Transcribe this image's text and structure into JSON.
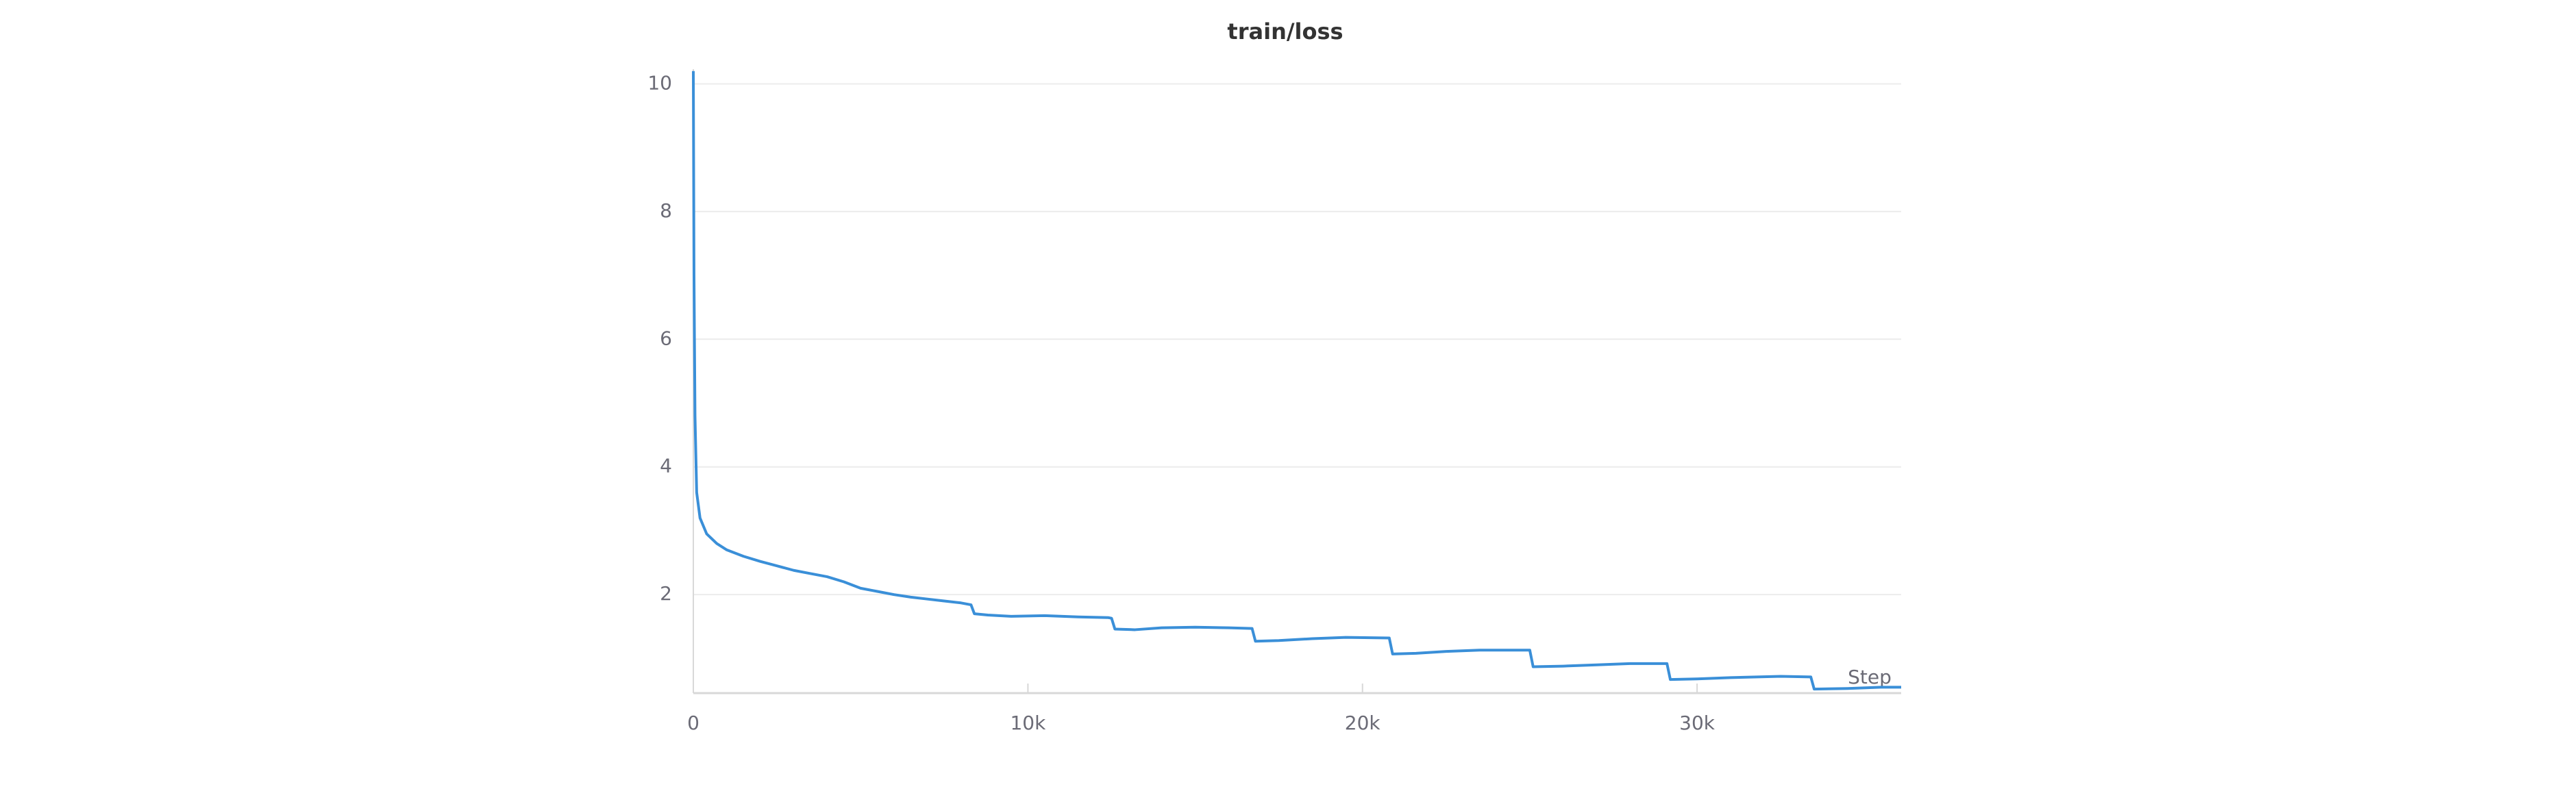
{
  "chart_data": {
    "type": "line",
    "title": "train/loss",
    "xlabel": "Step",
    "x": [
      0,
      20,
      50,
      100,
      200,
      400,
      700,
      1000,
      1500,
      2000,
      2500,
      3000,
      3500,
      4000,
      4500,
      5000,
      5500,
      6000,
      6500,
      7000,
      7500,
      8000,
      8300,
      8400,
      8800,
      9500,
      10500,
      11500,
      12400,
      12500,
      12600,
      13200,
      14000,
      15000,
      16000,
      16700,
      16800,
      17500,
      18500,
      19500,
      20800,
      20900,
      21600,
      22500,
      23500,
      25000,
      25100,
      26000,
      27000,
      28000,
      29100,
      29200,
      30000,
      31000,
      32500,
      33400,
      33500,
      34500,
      35500,
      36100
    ],
    "series": [
      {
        "color": "#3a8fd8",
        "values": [
          10.2,
          7.0,
          4.8,
          3.6,
          3.2,
          2.95,
          2.8,
          2.7,
          2.6,
          2.52,
          2.45,
          2.38,
          2.33,
          2.28,
          2.2,
          2.1,
          2.05,
          2.0,
          1.96,
          1.93,
          1.9,
          1.87,
          1.84,
          1.7,
          1.68,
          1.66,
          1.67,
          1.65,
          1.64,
          1.63,
          1.46,
          1.45,
          1.48,
          1.49,
          1.48,
          1.47,
          1.27,
          1.28,
          1.31,
          1.33,
          1.32,
          1.07,
          1.08,
          1.11,
          1.13,
          1.13,
          0.87,
          0.88,
          0.9,
          0.92,
          0.92,
          0.67,
          0.68,
          0.7,
          0.72,
          0.71,
          0.52,
          0.53,
          0.55,
          0.55
        ]
      }
    ],
    "xlim": [
      0,
      36100
    ],
    "ylim": [
      0.457,
      10.23
    ],
    "xticks": [
      0,
      {
        "value": 10000,
        "label": "10k"
      },
      {
        "value": 20000,
        "label": "20k"
      },
      {
        "value": 30000,
        "label": "30k"
      }
    ],
    "yticks": [
      2,
      4,
      6,
      8,
      10
    ],
    "grid": true
  }
}
